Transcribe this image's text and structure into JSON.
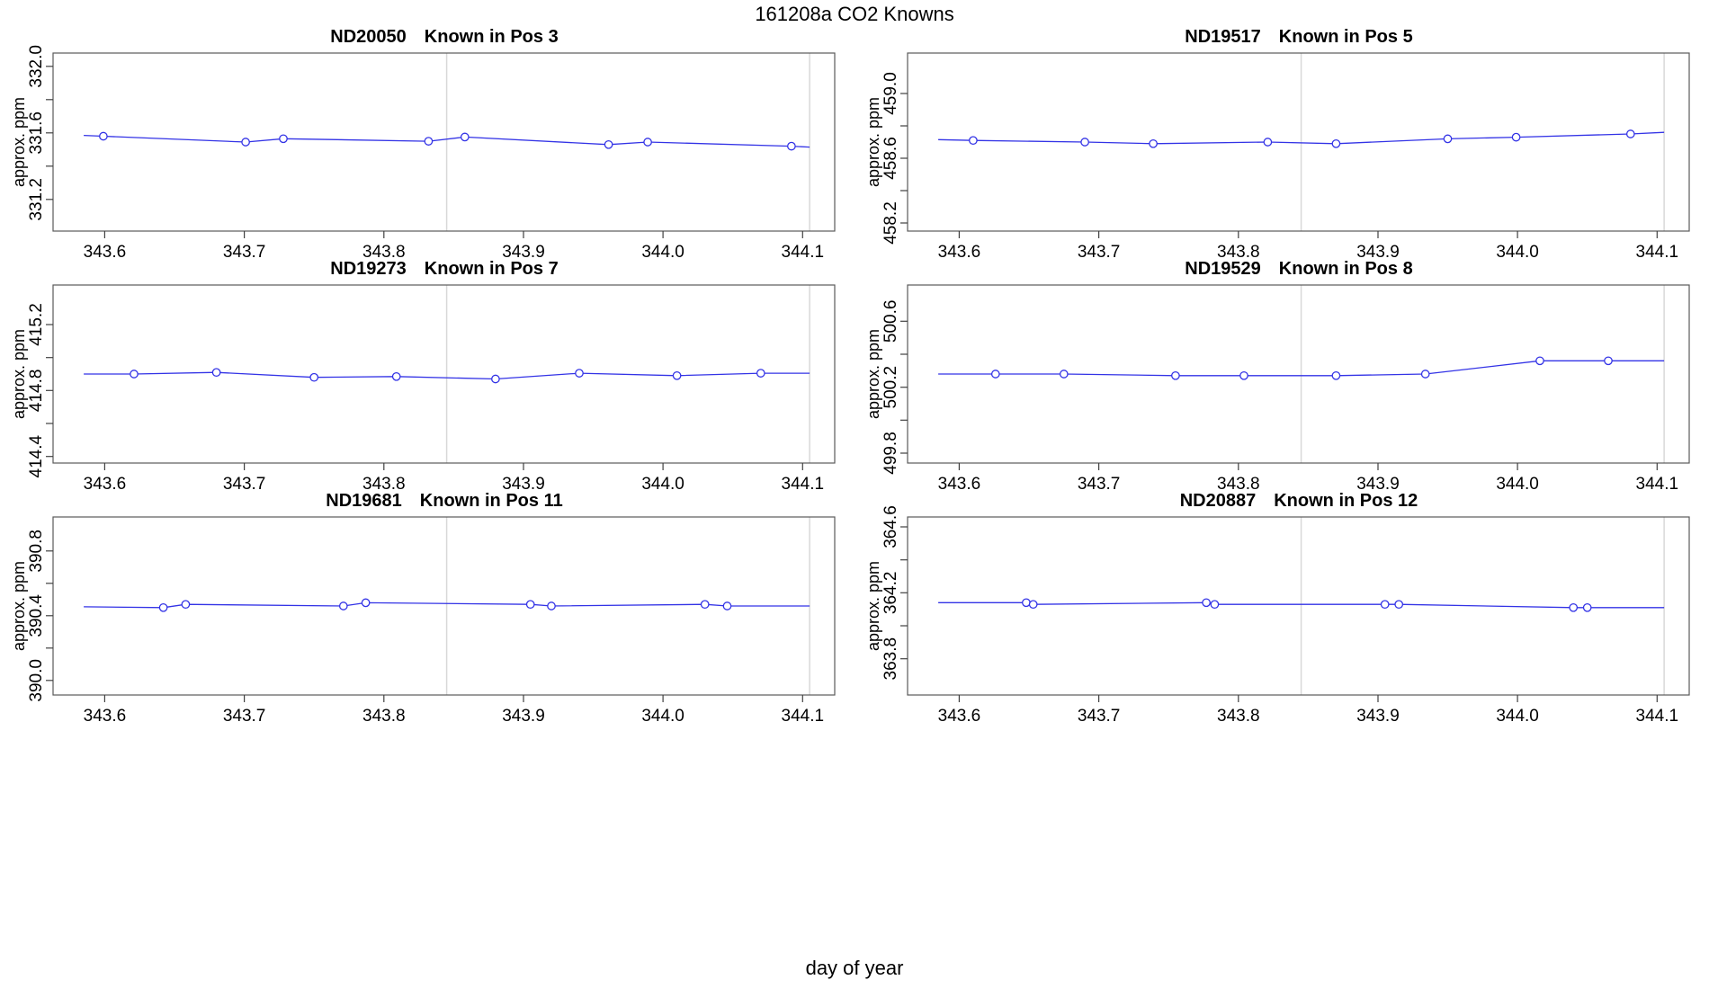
{
  "main_title": "161208a   CO2 Knowns",
  "xlabel": "day of year",
  "chart_data": {
    "type": "line",
    "title": "161208a   CO2 Knowns",
    "xlabel": "day of year",
    "ylabel": "approx. ppm",
    "legend": "none",
    "grid": false,
    "marker": "open-circle",
    "x_ticks": [
      "343.6",
      "343.7",
      "343.8",
      "343.9",
      "344.0",
      "344.1"
    ],
    "x_tick_values": [
      343.6,
      343.7,
      343.8,
      343.9,
      344.0,
      344.1
    ],
    "xlim": [
      343.563,
      344.123
    ],
    "ref_lines_x": [
      343.845,
      344.105
    ],
    "colors": {
      "line": "#3333e6",
      "ref_line": "#d8d8d8",
      "box": "#595959",
      "tick": "#404040",
      "text": "#000000"
    },
    "plots": [
      {
        "id": "ND20050",
        "pos_label": "Known in Pos 3",
        "ylabel": "approx. ppm",
        "ylim": [
          331.01,
          332.08
        ],
        "yticks": [
          {
            "v": 331.2,
            "label": "331.2"
          },
          {
            "v": 331.4,
            "label": ""
          },
          {
            "v": 331.6,
            "label": "331.6"
          },
          {
            "v": 331.8,
            "label": ""
          },
          {
            "v": 332.0,
            "label": "332.0"
          }
        ],
        "x": [
          343.599,
          343.701,
          343.728,
          343.832,
          343.858,
          343.961,
          343.989,
          344.092
        ],
        "y": [
          331.58,
          331.545,
          331.565,
          331.55,
          331.575,
          331.53,
          331.545,
          331.52
        ],
        "line_ext": {
          "x0": 343.585,
          "y0": 331.585,
          "x1": 344.105,
          "y1": 331.515
        }
      },
      {
        "id": "ND19517",
        "pos_label": "Known in Pos 5",
        "ylabel": "approx. ppm",
        "ylim": [
          458.15,
          459.25
        ],
        "yticks": [
          {
            "v": 458.2,
            "label": "458.2"
          },
          {
            "v": 458.4,
            "label": ""
          },
          {
            "v": 458.6,
            "label": "458.6"
          },
          {
            "v": 458.8,
            "label": ""
          },
          {
            "v": 459.0,
            "label": "459.0"
          }
        ],
        "x": [
          343.61,
          343.69,
          343.739,
          343.821,
          343.87,
          343.95,
          343.999,
          344.081
        ],
        "y": [
          458.71,
          458.7,
          458.69,
          458.7,
          458.69,
          458.72,
          458.73,
          458.75
        ],
        "line_ext": {
          "x0": 343.585,
          "y0": 458.715,
          "x1": 344.105,
          "y1": 458.76
        }
      },
      {
        "id": "ND19273",
        "pos_label": "Known in Pos 7",
        "ylabel": "approx. ppm",
        "ylim": [
          414.36,
          415.44
        ],
        "yticks": [
          {
            "v": 414.4,
            "label": "414.4"
          },
          {
            "v": 414.6,
            "label": ""
          },
          {
            "v": 414.8,
            "label": "414.8"
          },
          {
            "v": 415.0,
            "label": ""
          },
          {
            "v": 415.2,
            "label": "415.2"
          }
        ],
        "x": [
          343.621,
          343.68,
          343.75,
          343.809,
          343.88,
          343.94,
          344.01,
          344.07
        ],
        "y": [
          414.9,
          414.91,
          414.88,
          414.885,
          414.87,
          414.905,
          414.89,
          414.905
        ],
        "line_ext": {
          "x0": 343.585,
          "y0": 414.9,
          "x1": 344.105,
          "y1": 414.905
        }
      },
      {
        "id": "ND19529",
        "pos_label": "Known in Pos 8",
        "ylabel": "approx. ppm",
        "ylim": [
          499.74,
          500.82
        ],
        "yticks": [
          {
            "v": 499.8,
            "label": "499.8"
          },
          {
            "v": 500.0,
            "label": ""
          },
          {
            "v": 500.2,
            "label": "500.2"
          },
          {
            "v": 500.4,
            "label": ""
          },
          {
            "v": 500.6,
            "label": "500.6"
          }
        ],
        "x": [
          343.626,
          343.675,
          343.755,
          343.804,
          343.87,
          343.934,
          344.016,
          344.065
        ],
        "y": [
          500.28,
          500.28,
          500.27,
          500.27,
          500.27,
          500.28,
          500.36,
          500.36
        ],
        "line_ext": {
          "x0": 343.585,
          "y0": 500.28,
          "x1": 344.105,
          "y1": 500.36
        }
      },
      {
        "id": "ND19681",
        "pos_label": "Known in Pos 11",
        "ylabel": "approx. ppm",
        "ylim": [
          389.91,
          391.01
        ],
        "yticks": [
          {
            "v": 390.0,
            "label": "390.0"
          },
          {
            "v": 390.2,
            "label": ""
          },
          {
            "v": 390.4,
            "label": "390.4"
          },
          {
            "v": 390.6,
            "label": ""
          },
          {
            "v": 390.8,
            "label": "390.8"
          }
        ],
        "x": [
          343.642,
          343.658,
          343.771,
          343.787,
          343.905,
          343.92,
          344.03,
          344.046
        ],
        "y": [
          390.45,
          390.47,
          390.46,
          390.48,
          390.47,
          390.46,
          390.47,
          390.46
        ],
        "line_ext": {
          "x0": 343.585,
          "y0": 390.455,
          "x1": 344.105,
          "y1": 390.46
        }
      },
      {
        "id": "ND20887",
        "pos_label": "Known in Pos 12",
        "ylabel": "approx. ppm",
        "ylim": [
          363.58,
          364.66
        ],
        "yticks": [
          {
            "v": 363.8,
            "label": "363.8"
          },
          {
            "v": 364.0,
            "label": ""
          },
          {
            "v": 364.2,
            "label": "364.2"
          },
          {
            "v": 364.4,
            "label": ""
          },
          {
            "v": 364.6,
            "label": "364.6"
          }
        ],
        "x": [
          343.648,
          343.653,
          343.777,
          343.783,
          343.905,
          343.915,
          344.04,
          344.05
        ],
        "y": [
          364.14,
          364.13,
          364.14,
          364.13,
          364.13,
          364.13,
          364.11,
          364.11
        ],
        "line_ext": {
          "x0": 343.585,
          "y0": 364.14,
          "x1": 344.105,
          "y1": 364.11
        }
      }
    ]
  }
}
